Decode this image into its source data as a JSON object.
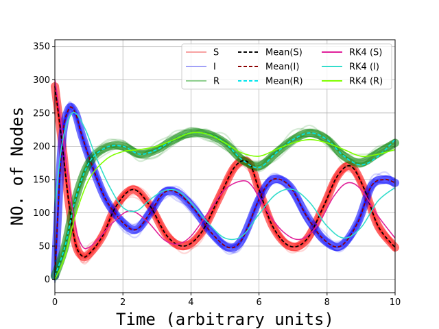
{
  "chart_data": {
    "type": "line",
    "xlabel": "Time (arbitrary units)",
    "ylabel": "NO. of Nodes",
    "xlim": [
      0,
      10
    ],
    "ylim": [
      -20,
      360
    ],
    "xticks": [
      0,
      2,
      4,
      6,
      8,
      10
    ],
    "yticks": [
      0,
      50,
      100,
      150,
      200,
      250,
      300,
      350
    ],
    "grid": true,
    "legend_position": "top-right",
    "legend_columns": 3,
    "bands": [
      {
        "name": "S",
        "color": "#ff0000",
        "width": 22,
        "x": [
          0,
          0.2,
          0.4,
          0.6,
          0.8,
          1.0,
          1.4,
          1.8,
          2.3,
          2.8,
          3.3,
          3.8,
          4.3,
          4.8,
          5.3,
          5.7,
          6.0,
          6.4,
          6.9,
          7.4,
          7.9,
          8.3,
          8.7,
          9.1,
          9.5,
          10.0
        ],
        "y": [
          290,
          210,
          120,
          55,
          35,
          38,
          65,
          110,
          135,
          110,
          65,
          50,
          70,
          120,
          170,
          175,
          135,
          80,
          50,
          60,
          110,
          155,
          170,
          135,
          80,
          48
        ]
      },
      {
        "name": "I",
        "color": "#0000ff",
        "width": 22,
        "x": [
          0,
          0.2,
          0.4,
          0.6,
          0.8,
          1.1,
          1.5,
          2.0,
          2.4,
          2.8,
          3.2,
          3.6,
          4.1,
          4.6,
          5.1,
          5.5,
          6.0,
          6.4,
          6.9,
          7.4,
          7.9,
          8.4,
          8.9,
          9.3,
          9.7,
          10.0
        ],
        "y": [
          5,
          200,
          255,
          250,
          215,
          170,
          120,
          85,
          75,
          100,
          130,
          130,
          105,
          70,
          48,
          60,
          120,
          150,
          140,
          95,
          60,
          50,
          85,
          140,
          150,
          145
        ]
      },
      {
        "name": "R",
        "color": "#008000",
        "width": 22,
        "x": [
          0,
          0.3,
          0.6,
          1.0,
          1.5,
          2.0,
          2.5,
          3.0,
          3.5,
          4.0,
          4.5,
          5.0,
          5.5,
          6.0,
          6.5,
          7.0,
          7.5,
          8.0,
          8.5,
          9.0,
          9.5,
          10.0
        ],
        "y": [
          5,
          50,
          120,
          175,
          198,
          200,
          188,
          195,
          210,
          220,
          218,
          205,
          180,
          170,
          190,
          210,
          220,
          210,
          185,
          175,
          190,
          205
        ]
      }
    ],
    "series": [
      {
        "name": "Mean(S)",
        "color": "#000000",
        "dashed": true,
        "x": [
          0,
          0.2,
          0.4,
          0.6,
          0.8,
          1.0,
          1.4,
          1.8,
          2.3,
          2.8,
          3.3,
          3.8,
          4.3,
          4.8,
          5.3,
          5.7,
          6.0,
          6.4,
          6.9,
          7.4,
          7.9,
          8.3,
          8.7,
          9.1,
          9.5,
          10.0
        ],
        "y": [
          290,
          210,
          120,
          55,
          35,
          38,
          65,
          110,
          135,
          110,
          65,
          50,
          70,
          120,
          170,
          175,
          135,
          80,
          50,
          60,
          110,
          155,
          170,
          135,
          80,
          48
        ]
      },
      {
        "name": "Mean(I)",
        "color": "#8b0000",
        "dashed": true,
        "x": [
          0,
          0.2,
          0.4,
          0.6,
          0.8,
          1.1,
          1.5,
          2.0,
          2.4,
          2.8,
          3.2,
          3.6,
          4.1,
          4.6,
          5.1,
          5.5,
          6.0,
          6.4,
          6.9,
          7.4,
          7.9,
          8.4,
          8.9,
          9.3,
          9.7,
          10.0
        ],
        "y": [
          5,
          200,
          255,
          250,
          215,
          170,
          120,
          85,
          75,
          100,
          130,
          130,
          105,
          70,
          48,
          60,
          120,
          150,
          140,
          95,
          60,
          50,
          85,
          140,
          150,
          145
        ]
      },
      {
        "name": "Mean(R)",
        "color": "#00e5ee",
        "dashed": true,
        "x": [
          0,
          0.3,
          0.6,
          1.0,
          1.5,
          2.0,
          2.5,
          3.0,
          3.5,
          4.0,
          4.5,
          5.0,
          5.5,
          6.0,
          6.5,
          7.0,
          7.5,
          8.0,
          8.5,
          9.0,
          9.5,
          10.0
        ],
        "y": [
          5,
          50,
          120,
          175,
          198,
          200,
          188,
          195,
          210,
          220,
          218,
          205,
          180,
          168,
          190,
          210,
          220,
          210,
          185,
          172,
          185,
          210
        ]
      },
      {
        "name": "RK4 (S)",
        "color": "#e0209a",
        "dashed": false,
        "x": [
          0,
          0.2,
          0.4,
          0.6,
          0.8,
          1.0,
          1.3,
          1.7,
          2.2,
          2.7,
          3.2,
          3.6,
          4.0,
          4.5,
          5.0,
          5.5,
          5.8,
          6.2,
          6.7,
          7.2,
          7.7,
          8.2,
          8.6,
          9.0,
          9.5,
          10.0
        ],
        "y": [
          300,
          230,
          150,
          80,
          50,
          48,
          62,
          85,
          103,
          88,
          60,
          53,
          65,
          100,
          135,
          148,
          140,
          105,
          72,
          60,
          80,
          125,
          145,
          135,
          95,
          62
        ]
      },
      {
        "name": "RK4 (I)",
        "color": "#33ddcc",
        "dashed": false,
        "x": [
          0,
          0.2,
          0.4,
          0.6,
          0.9,
          1.2,
          1.6,
          2.0,
          2.4,
          2.8,
          3.2,
          3.6,
          4.0,
          4.5,
          5.0,
          5.5,
          6.0,
          6.5,
          7.0,
          7.5,
          8.0,
          8.5,
          9.0,
          9.5,
          10.0
        ],
        "y": [
          110,
          200,
          240,
          250,
          225,
          185,
          140,
          108,
          103,
          120,
          133,
          133,
          115,
          85,
          62,
          65,
          98,
          128,
          135,
          115,
          80,
          62,
          78,
          118,
          138
        ]
      },
      {
        "name": "RK4 (R)",
        "color": "#80ff00",
        "dashed": false,
        "x": [
          0,
          0.3,
          0.6,
          1.0,
          1.5,
          2.0,
          2.5,
          3.0,
          3.5,
          4.0,
          4.5,
          5.0,
          5.5,
          6.0,
          6.5,
          7.0,
          7.5,
          8.0,
          8.5,
          9.0,
          9.5,
          10.0
        ],
        "y": [
          0,
          35,
          95,
          150,
          180,
          192,
          195,
          200,
          210,
          220,
          218,
          205,
          190,
          185,
          195,
          205,
          210,
          205,
          195,
          185,
          188,
          195
        ]
      }
    ],
    "legend": [
      {
        "label": "S",
        "color": "#f7a1a1",
        "dashed": false
      },
      {
        "label": "I",
        "color": "#a1a1f7",
        "dashed": false
      },
      {
        "label": "R",
        "color": "#8fcf8f",
        "dashed": false
      },
      {
        "label": "Mean(S)",
        "color": "#000000",
        "dashed": true
      },
      {
        "label": "Mean(I)",
        "color": "#8b0000",
        "dashed": true
      },
      {
        "label": "Mean(R)",
        "color": "#00e5ee",
        "dashed": true
      },
      {
        "label": "RK4 (S)",
        "color": "#e0209a",
        "dashed": false
      },
      {
        "label": "RK4 (I)",
        "color": "#33ddcc",
        "dashed": false
      },
      {
        "label": "RK4 (R)",
        "color": "#80ff00",
        "dashed": false
      }
    ]
  }
}
